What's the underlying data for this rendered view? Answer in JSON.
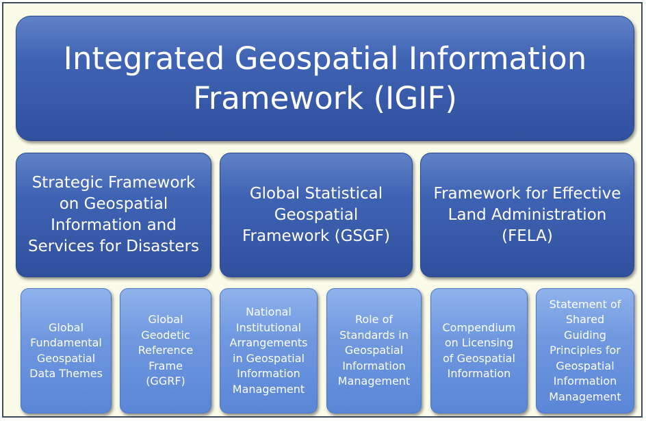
{
  "title": {
    "text": "Integrated Geospatial Information\nFramework (IGIF)"
  },
  "frameworks": [
    {
      "text": "Strategic Framework\non Geospatial\nInformation and\nServices for Disasters"
    },
    {
      "text": "Global Statistical\nGeospatial\nFramework (GSGF)"
    },
    {
      "text": "Framework for Effective\nLand Administration\n(FELA)"
    }
  ],
  "components": [
    {
      "text": "Global\nFundamental\nGeospatial\nData Themes"
    },
    {
      "text": "Global\nGeodetic\nReference\nFrame\n(GGRF)"
    },
    {
      "text": "National\nInstitutional\nArrangements\nin Geospatial\nInformation\nManagement"
    },
    {
      "text": "Role of\nStandards in\nGeospatial\nInformation\nManagement"
    },
    {
      "text": "Compendium\non Licensing\nof Geospatial\nInformation"
    },
    {
      "text": "Statement of\nShared\nGuiding\nPrinciples for\nGeospatial\nInformation\nManagement"
    }
  ],
  "colors": {
    "frame_background": "#fbfbea",
    "frame_border": "#3d4a5c",
    "dark_box": "#3f63b3",
    "light_box": "#6f98df",
    "text": "#ffffff"
  }
}
